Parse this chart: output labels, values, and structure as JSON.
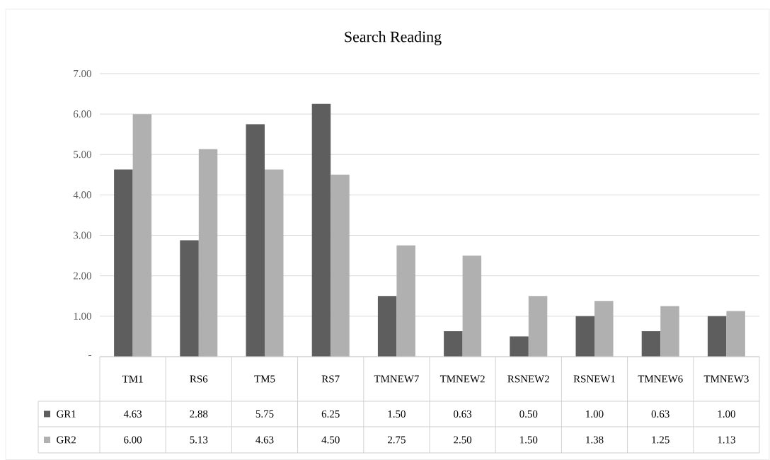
{
  "chart_data": {
    "type": "bar",
    "title": "Search Reading",
    "categories": [
      "TM1",
      "RS6",
      "TM5",
      "RS7",
      "TMNEW7",
      "TMNEW2",
      "RSNEW2",
      "RSNEW1",
      "TMNEW6",
      "TMNEW3"
    ],
    "series": [
      {
        "name": "GR1",
        "color": "#5e5e5e",
        "values": [
          4.63,
          2.88,
          5.75,
          6.25,
          1.5,
          0.63,
          0.5,
          1.0,
          0.63,
          1.0
        ],
        "value_labels": [
          "4.63",
          "2.88",
          "5.75",
          "6.25",
          "1.50",
          "0.63",
          "0.50",
          "1.00",
          "0.63",
          "1.00"
        ]
      },
      {
        "name": "GR2",
        "color": "#b0b0b0",
        "values": [
          6.0,
          5.13,
          4.63,
          4.5,
          2.75,
          2.5,
          1.5,
          1.38,
          1.25,
          1.13
        ],
        "value_labels": [
          "6.00",
          "5.13",
          "4.63",
          "4.50",
          "2.75",
          "2.50",
          "1.50",
          "1.38",
          "1.25",
          "1.13"
        ]
      }
    ],
    "ylim": [
      0,
      7
    ],
    "yticks": [
      {
        "value": 0,
        "label": "-"
      },
      {
        "value": 1,
        "label": "1.00"
      },
      {
        "value": 2,
        "label": "2.00"
      },
      {
        "value": 3,
        "label": "3.00"
      },
      {
        "value": 4,
        "label": "4.00"
      },
      {
        "value": 5,
        "label": "5.00"
      },
      {
        "value": 6,
        "label": "6.00"
      },
      {
        "value": 7,
        "label": "7.00"
      }
    ],
    "grid": "y",
    "legend": "bottom"
  }
}
